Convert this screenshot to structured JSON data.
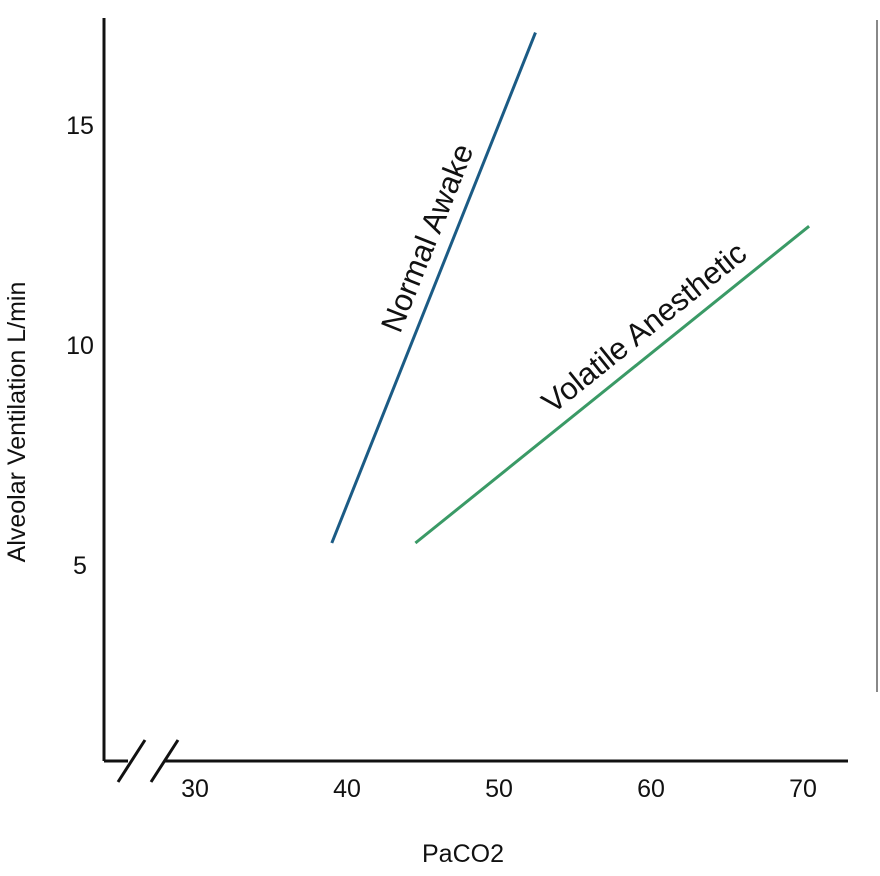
{
  "chart_data": {
    "type": "line",
    "title": "",
    "xlabel": "PaCO2",
    "ylabel": "Alveolar Ventilation L/min",
    "x_ticks": [
      30,
      40,
      50,
      60,
      70
    ],
    "y_ticks": [
      5,
      10,
      15
    ],
    "axis_break": "x",
    "grid": false,
    "xlim": [
      25,
      73
    ],
    "ylim": [
      0.7,
      17.4
    ],
    "series": [
      {
        "name": "Normal Awake",
        "color": "#1b5b85",
        "points": [
          [
            39.0,
            5.5
          ],
          [
            52.4,
            17.1
          ]
        ]
      },
      {
        "name": "Volatile Anesthetic",
        "color": "#3a9a66",
        "points": [
          [
            44.5,
            5.5
          ],
          [
            70.4,
            12.7
          ]
        ]
      }
    ]
  },
  "colors": {
    "axis": "#111111",
    "right_border": "#888888"
  }
}
